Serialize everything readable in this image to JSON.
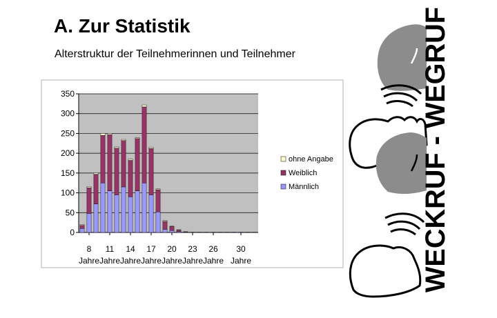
{
  "slide": {
    "title": "A. Zur Statistik",
    "subtitle": "Alterstruktur der Teilnehmerinnen und Teilnehmer"
  },
  "logo": {
    "text": "WECKRUF - WEGRUF",
    "color": "#000000",
    "head_fill": "#8c8c8c"
  },
  "colors": {
    "plot_bg": "#c0c0c0",
    "maennlich": "#9999ff",
    "weiblich": "#993366",
    "ohne_angabe": "#ffffcc"
  },
  "chart_data": {
    "type": "bar",
    "stacked": true,
    "x": [
      7,
      8,
      9,
      10,
      11,
      12,
      13,
      14,
      15,
      16,
      17,
      18,
      19,
      20,
      21,
      22,
      23,
      24,
      25,
      26,
      27,
      28,
      29,
      30,
      31,
      32
    ],
    "tick_labels": [
      {
        "line1": "8",
        "line2": "Jahre"
      },
      {
        "line1": "11",
        "line2": "Jahre"
      },
      {
        "line1": "14",
        "line2": "Jahre"
      },
      {
        "line1": "17",
        "line2": "Jahre"
      },
      {
        "line1": "20",
        "line2": "Jahre"
      },
      {
        "line1": "23",
        "line2": "Jahre"
      },
      {
        "line1": "26",
        "line2": "Jahre"
      },
      {
        "line1": "30",
        "line2": "Jahre"
      }
    ],
    "y_ticks": [
      0,
      50,
      100,
      150,
      200,
      250,
      300,
      350
    ],
    "ylim": [
      0,
      350
    ],
    "series": [
      {
        "name": "Männlich",
        "values": [
          10,
          48,
          72,
          125,
          105,
          95,
          115,
          90,
          105,
          125,
          95,
          52,
          8,
          5,
          2,
          1,
          1,
          1,
          1,
          1,
          1,
          1,
          1,
          1,
          1,
          1
        ]
      },
      {
        "name": "Weiblich",
        "values": [
          8,
          65,
          75,
          120,
          142,
          118,
          117,
          92,
          132,
          192,
          117,
          56,
          20,
          10,
          4,
          1,
          0,
          0,
          0,
          0,
          0,
          0,
          0,
          0,
          0,
          0
        ]
      },
      {
        "name": "ohne Angabe",
        "values": [
          2,
          3,
          3,
          5,
          3,
          3,
          3,
          3,
          2,
          5,
          3,
          2,
          2,
          1,
          1,
          0,
          0,
          0,
          0,
          0,
          0,
          0,
          0,
          0,
          0,
          0
        ]
      }
    ],
    "legend_order": [
      "ohne Angabe",
      "Weiblich",
      "Männlich"
    ],
    "legend_position": "right",
    "grid": true
  }
}
